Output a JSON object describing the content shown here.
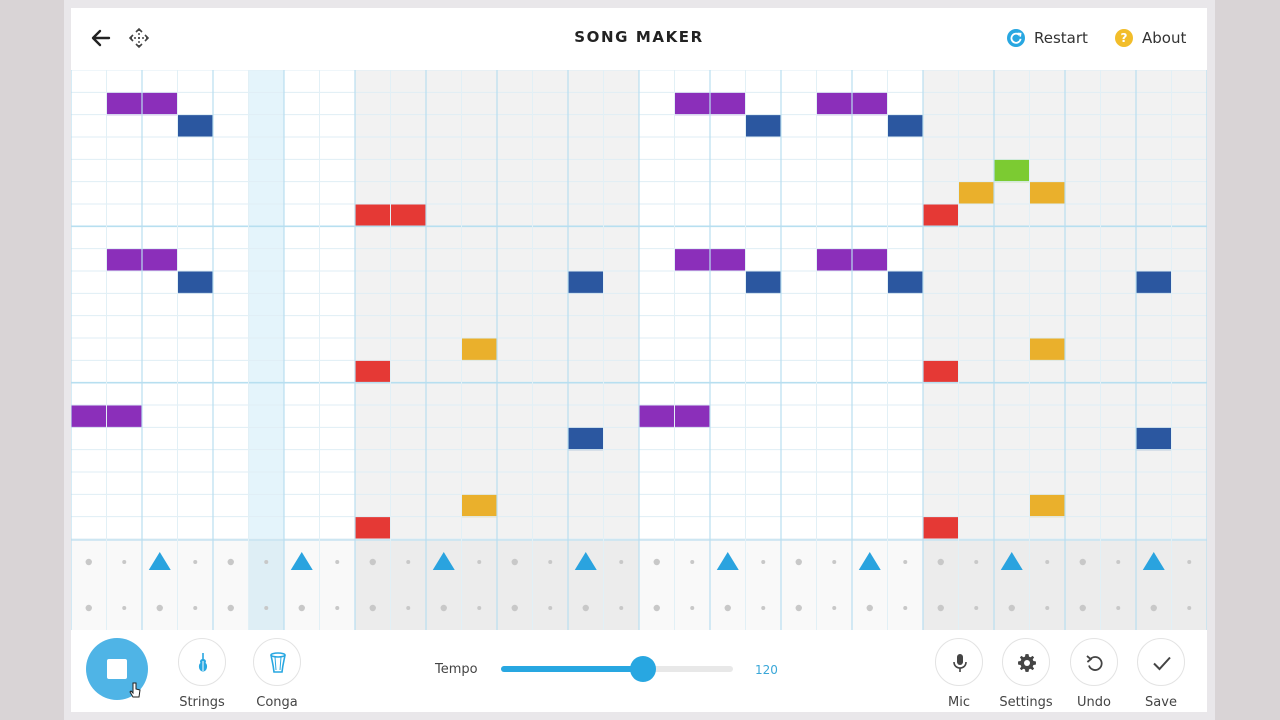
{
  "header": {
    "title": "SONG MAKER",
    "restart_label": "Restart",
    "about_label": "About",
    "about_glyph": "?"
  },
  "icons": {
    "back": "arrow-left-icon",
    "move": "move-icon",
    "restart": "restart-icon",
    "about": "help-icon",
    "strings": "violin-icon",
    "conga": "conga-drum-icon",
    "mic": "microphone-icon",
    "settings": "gear-icon",
    "undo": "undo-icon",
    "save": "check-icon"
  },
  "colors": {
    "accent": "#28a7e1",
    "about_badge": "#f2bd2a",
    "note_purple": "#8b2fba",
    "note_blue": "#2b57a0",
    "note_red": "#e53935",
    "note_yellow": "#eab02c",
    "note_green": "#7ccb32"
  },
  "song_grid": {
    "columns": 32,
    "melody_rows": 21,
    "highlighted_column": 5,
    "notes": [
      {
        "col": 1,
        "row": 1,
        "color": "purple"
      },
      {
        "col": 2,
        "row": 1,
        "color": "purple"
      },
      {
        "col": 3,
        "row": 2,
        "color": "blue"
      },
      {
        "col": 17,
        "row": 1,
        "color": "purple"
      },
      {
        "col": 18,
        "row": 1,
        "color": "purple"
      },
      {
        "col": 19,
        "row": 2,
        "color": "blue"
      },
      {
        "col": 21,
        "row": 1,
        "color": "purple"
      },
      {
        "col": 22,
        "row": 1,
        "color": "purple"
      },
      {
        "col": 23,
        "row": 2,
        "color": "blue"
      },
      {
        "col": 26,
        "row": 4,
        "color": "green"
      },
      {
        "col": 25,
        "row": 5,
        "color": "yellow"
      },
      {
        "col": 27,
        "row": 5,
        "color": "yellow"
      },
      {
        "col": 8,
        "row": 6,
        "color": "red"
      },
      {
        "col": 9,
        "row": 6,
        "color": "red"
      },
      {
        "col": 24,
        "row": 6,
        "color": "red"
      },
      {
        "col": 1,
        "row": 8,
        "color": "purple"
      },
      {
        "col": 2,
        "row": 8,
        "color": "purple"
      },
      {
        "col": 3,
        "row": 9,
        "color": "blue"
      },
      {
        "col": 14,
        "row": 9,
        "color": "blue"
      },
      {
        "col": 17,
        "row": 8,
        "color": "purple"
      },
      {
        "col": 18,
        "row": 8,
        "color": "purple"
      },
      {
        "col": 19,
        "row": 9,
        "color": "blue"
      },
      {
        "col": 21,
        "row": 8,
        "color": "purple"
      },
      {
        "col": 22,
        "row": 8,
        "color": "purple"
      },
      {
        "col": 23,
        "row": 9,
        "color": "blue"
      },
      {
        "col": 30,
        "row": 9,
        "color": "blue"
      },
      {
        "col": 11,
        "row": 12,
        "color": "yellow"
      },
      {
        "col": 27,
        "row": 12,
        "color": "yellow"
      },
      {
        "col": 8,
        "row": 13,
        "color": "red"
      },
      {
        "col": 24,
        "row": 13,
        "color": "red"
      },
      {
        "col": 0,
        "row": 15,
        "color": "purple"
      },
      {
        "col": 1,
        "row": 15,
        "color": "purple"
      },
      {
        "col": 16,
        "row": 15,
        "color": "purple"
      },
      {
        "col": 17,
        "row": 15,
        "color": "purple"
      },
      {
        "col": 14,
        "row": 16,
        "color": "blue"
      },
      {
        "col": 30,
        "row": 16,
        "color": "blue"
      },
      {
        "col": 11,
        "row": 19,
        "color": "yellow"
      },
      {
        "col": 27,
        "row": 19,
        "color": "yellow"
      },
      {
        "col": 8,
        "row": 20,
        "color": "red"
      },
      {
        "col": 24,
        "row": 20,
        "color": "red"
      }
    ],
    "percussion_triangles": [
      2,
      6,
      10,
      14,
      18,
      22,
      26,
      30
    ]
  },
  "controls": {
    "strings_label": "Strings",
    "conga_label": "Conga",
    "tempo_label": "Tempo",
    "tempo_value": "120",
    "tempo_fraction": 0.61,
    "mic_label": "Mic",
    "settings_label": "Settings",
    "undo_label": "Undo",
    "save_label": "Save"
  }
}
